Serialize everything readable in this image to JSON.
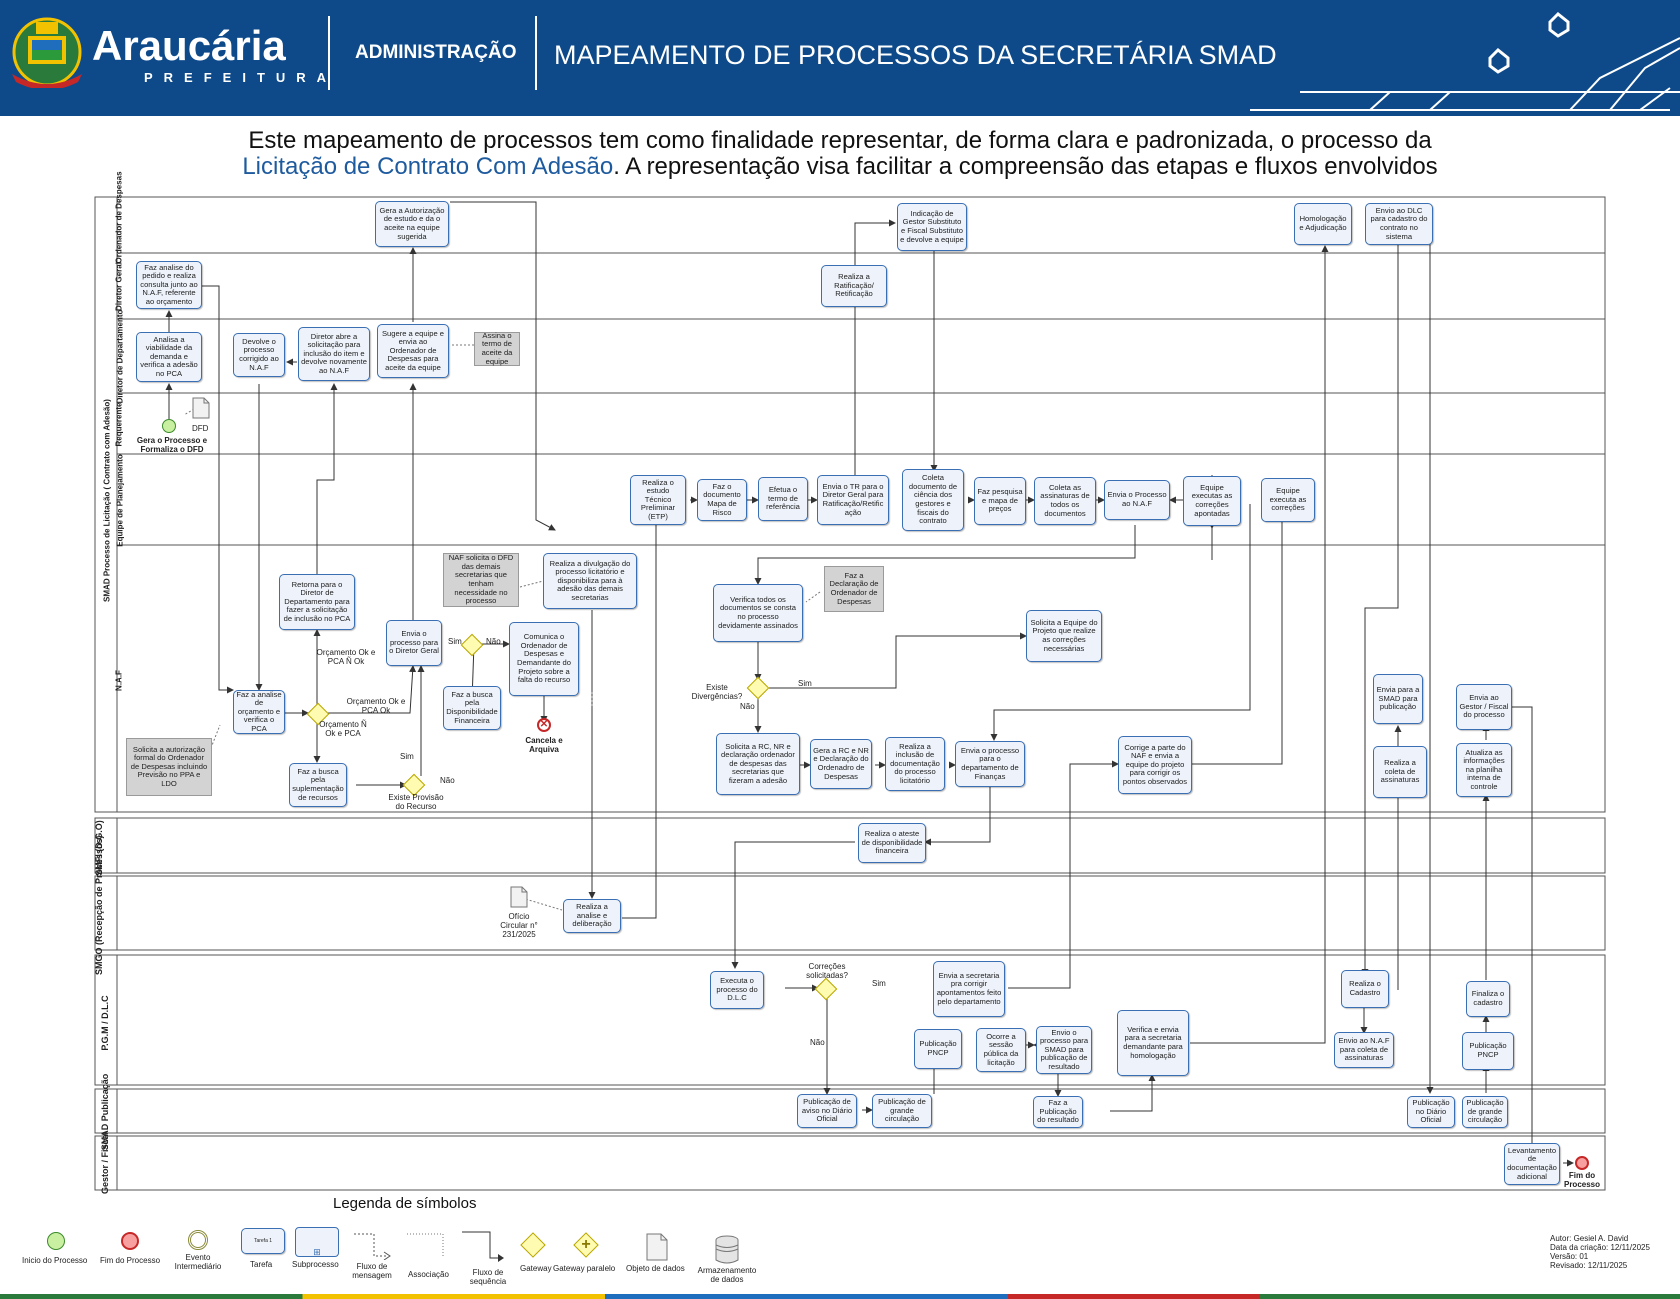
{
  "header": {
    "brand_name": "Araucária",
    "brand_sub": "PREFEITURA",
    "section": "ADMINISTRAÇÃO",
    "title": "MAPEAMENTO DE PROCESSOS DA SECRETÁRIA SMAD",
    "bg_color": "#0e4a8a"
  },
  "intro": {
    "line1": "Este mapeamento de processos tem como finalidade representar, de forma clara e padronizada, o processo da",
    "line2_highlight": "Licitação de Contrato Com Adesão",
    "line2_rest": ". A representação visa facilitar a compreensão das etapas e fluxos envolvidos"
  },
  "pool": {
    "title": "SMAD Processo de Licitação ( Contrato com Adesão)",
    "lanes": {
      "ordenador": "Ordenador de Despesas",
      "diretor_geral": "Diretor Geral",
      "diretor_depto": "Diretor de Departamento",
      "requerente": "Requerente",
      "planejamento": "Equipe de Planejamento",
      "naf": "N.A.F",
      "smfi": "SMFI (D.G.O)",
      "smgo": "SMGO (Recepção de Processos)",
      "pgm": "P.G.M / D.L.C",
      "smad_pub": "SMAD Publicação",
      "gestor": "Gestor / Fiscal"
    }
  },
  "tasks": {
    "t1": "Gera a Autorização de estudo e da o aceite na equipe sugerida",
    "t2": "Indicação de Gestor Substituto e Fiscal Substituto e devolve a equipe",
    "t3": "Homologação e Adjudicação",
    "t4": "Envio ao DLC para cadastro do contrato no sistema",
    "t5": "Faz analise do pedido e realiza consulta junto ao N.A.F, referente ao orçamento",
    "t6": "Realiza a Ratificação/ Retificação",
    "t7": "Analisa a viabilidade da demanda e verifica a adesão no PCA",
    "t8": "Devolve o processo corrigido ao N.A.F",
    "t9": "Diretor abre a solicitação para inclusão do item e devolve novamente ao N.A.F",
    "t10": "Sugere a equipe e envia ao Ordenador de Despesas para aceite da equipe",
    "t11": "Realiza o estudo Técnico Preliminar (ETP)",
    "t12": "Faz o documento Mapa de Risco",
    "t13": "Efetua o termo de referência",
    "t14": "Envia o TR para o Diretor Geral para Ratificação/Retific ação",
    "t15": "Coleta documento de ciência dos gestores e fiscais do contrato",
    "t16": "Faz pesquisa e mapa de preços",
    "t17": "Coleta as assinaturas de todos os documentos",
    "t18": "Envia o Processo ao N.A.F",
    "t19": "Equipe executas as correções apontadas",
    "t20": "Equipe executa as correções",
    "t21": "Realiza a divulgação do processo licitatório e disponibiliza para à adesão das demais secretarias",
    "t22": "Retorna para o Diretor de Departamento para fazer a solicitação de inclusão no PCA",
    "t23": "Verifica todos os documentos se consta no processo devidamente assinados",
    "t24": "Envia o processo para o Diretor Geral",
    "t25": "Comunica o Ordenador de Despesas e Demandante do Projeto sobre a falta do recurso",
    "t26": "Solicita a Equipe do Projeto que realize as correções necessárias",
    "t27": "Faz a busca pela Disponibilidade Financeira",
    "t28": "Faz a analise de orçamento e verifica o PCA",
    "t29": "Envia para a SMAD para publicação",
    "t30": "Envia ao Gestor / Fiscal do processo",
    "t31": "Faz a busca pela suplementação de recursos",
    "t32": "Solicita a RC, NR e declaração ordenador de despesas das secretarias que fizeram a adesão",
    "t33": "Gera a RC e NR e Declaração do Ordenadro de Despesas",
    "t34": "Realiza a inclusão de documentação do processo licitatório",
    "t35": "Envia o processo para o departamento de Finanças",
    "t36": "Corrige a parte do NAF e envia a equipe do projeto para corrigir os pontos observados",
    "t37": "Realiza a coleta de assinaturas",
    "t38": "Atualiza as informações na planilha interna de controle",
    "t39": "Realiza o ateste de disponibilidade financeira",
    "t40": "Realiza a analise e deliberação",
    "t41": "Executa o processo do D.L.C",
    "t42": "Envia a secretaria pra corrigir apontamentos feito pelo departamento",
    "t43": "Realiza o Cadastro",
    "t44": "Finaliza o cadastro",
    "t45": "Publicação PNCP",
    "t46": "Ocorre a sessão pública da licitação",
    "t47": "Envio o processo para SMAD para publicação de resultado",
    "t48": "Verifica e envia para a secretaria demandante para homologação",
    "t49": "Envio ao N.A.F para coleta de assinaturas",
    "t50": "Publicação PNCP",
    "t51": "Publicação de aviso no Diário Oficial",
    "t52": "Publicação de grande circulação",
    "t53": "Faz a Publicação do resultado",
    "t54": "Publicação no Diário Oficial",
    "t55": "Publicação de grande circulação",
    "t56": "Levantamento de documentação adicional"
  },
  "notes": {
    "n1": "Assina o termo de aceite da equipe",
    "n2": "NAF solicita o DFD das demais secretarias que tenham necessidade no processo",
    "n3": "Faz a Declaração de Ordenador de Despesas",
    "n4": "Solicita a autorização formal do Ordenador de Despesas incluindo Previsão no PPA e LDO"
  },
  "labels": {
    "dfd": "DFD",
    "start": "Gera o Processo e Formaliza o DFD",
    "orc_ok_pca_nok": "Orçamento Ok e PCA Ñ Ok",
    "orc_ok_pca_ok": "Orçamento Ok e PCA Ok",
    "orc_nok_pca": "Orçamento Ñ Ok e PCA",
    "sim": "Sim",
    "nao": "Não",
    "existe_provisao": "Existe Provisão do Recurso",
    "existe_divergencias": "Existe Divergências?",
    "cancela": "Cancela e Arquiva",
    "oficio": "Ofício Circular n° 231/2025",
    "correcoes": "Correções solicitadas?",
    "fim": "Fim do Processo"
  },
  "legend": {
    "title": "Legenda de símbolos",
    "items": [
      "Inicio do Processo",
      "Fim do Processo",
      "Evento Intermediário",
      "Tarefa",
      "Subprocesso",
      "Fluxo de mensagem",
      "Associação",
      "Fluxo de sequência",
      "Gateway",
      "Gateway paralelo",
      "Objeto de dados",
      "Armazenamento de dados"
    ],
    "task_sample": "Tarefa 1"
  },
  "author": {
    "autor": "Autor: Gesiel A. David",
    "data": "Data da criação: 12/11/2025",
    "versao": "Versão: 01",
    "revisado": "Revisado: 12/11/2025"
  }
}
